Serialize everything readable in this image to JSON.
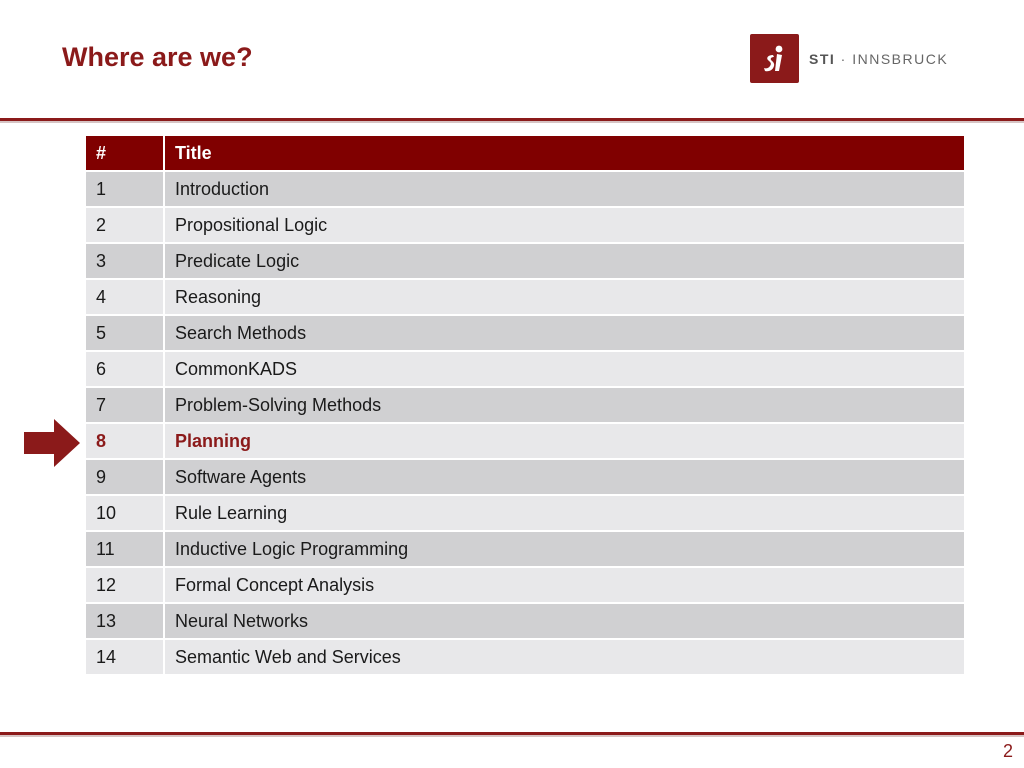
{
  "slide": {
    "title": "Where are we?",
    "page_number": "2",
    "accent_color": "#8b1a1a"
  },
  "logo": {
    "mark_icon": "sti-figure-icon",
    "brand": "STI",
    "separator": "·",
    "location": "INNSBRUCK"
  },
  "table": {
    "headers": {
      "num": "#",
      "title": "Title"
    },
    "current_index": 7,
    "rows": [
      {
        "num": "1",
        "title": "Introduction"
      },
      {
        "num": "2",
        "title": "Propositional Logic"
      },
      {
        "num": "3",
        "title": "Predicate Logic"
      },
      {
        "num": "4",
        "title": "Reasoning"
      },
      {
        "num": "5",
        "title": "Search Methods"
      },
      {
        "num": "6",
        "title": "CommonKADS"
      },
      {
        "num": "7",
        "title": "Problem-Solving Methods"
      },
      {
        "num": "8",
        "title": "Planning"
      },
      {
        "num": "9",
        "title": "Software Agents"
      },
      {
        "num": "10",
        "title": "Rule Learning"
      },
      {
        "num": "11",
        "title": "Inductive Logic Programming"
      },
      {
        "num": "12",
        "title": "Formal Concept Analysis"
      },
      {
        "num": "13",
        "title": "Neural Networks"
      },
      {
        "num": "14",
        "title": "Semantic Web and Services"
      }
    ]
  },
  "marker": {
    "icon": "right-arrow-icon",
    "color": "#8b1a1a"
  }
}
